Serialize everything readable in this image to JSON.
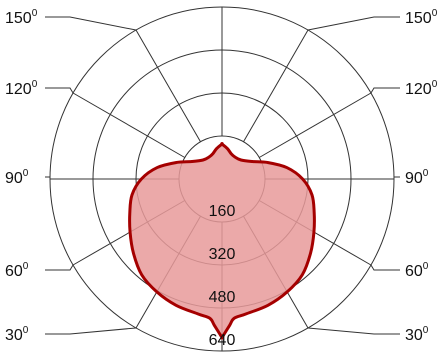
{
  "chart_data": {
    "type": "polar",
    "grid": true,
    "series_color": "#a50000",
    "fill_color": "#e89a9a",
    "rmax": 640,
    "r_ticks": [
      160,
      320,
      480,
      640
    ],
    "r_tick_labels": [
      "160",
      "320",
      "480",
      "640"
    ],
    "angle_labels": {
      "left": [
        {
          "value": "150",
          "sup": "0"
        },
        {
          "value": "120",
          "sup": "0"
        },
        {
          "value": "90",
          "sup": "0"
        },
        {
          "value": "60",
          "sup": "0"
        },
        {
          "value": "30",
          "sup": "0"
        }
      ],
      "right": [
        {
          "value": "150",
          "sup": "0"
        },
        {
          "value": "120",
          "sup": "0"
        },
        {
          "value": "90",
          "sup": "0"
        },
        {
          "value": "60",
          "sup": "0"
        },
        {
          "value": "30",
          "sup": "0"
        }
      ]
    },
    "spoke_angles": [
      0,
      30,
      60,
      90,
      120,
      150,
      180
    ],
    "series": [
      {
        "angles": [
          0,
          3,
          5,
          10,
          20,
          30,
          40,
          50,
          60,
          70,
          80,
          90,
          100,
          110,
          120,
          135,
          150,
          160,
          170,
          180
        ],
        "intensity": [
          590,
          545,
          520,
          510,
          500,
          485,
          465,
          430,
          395,
          365,
          340,
          300,
          245,
          180,
          130,
          100,
          95,
          100,
          115,
          130
        ]
      }
    ]
  }
}
